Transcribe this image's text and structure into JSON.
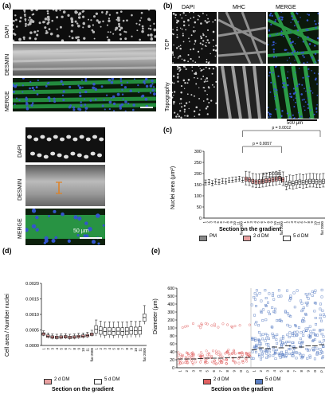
{
  "panel_a": {
    "letter": "(a)",
    "labels": [
      "DAPI",
      "DESMIN",
      "MERGE"
    ],
    "zoom_labels": [
      "DAPI",
      "DESMIN",
      "MERGE"
    ],
    "scale_text": "50 μm"
  },
  "panel_b": {
    "letter": "(b)",
    "columns": [
      "DAPI",
      "MHC",
      "MERGE"
    ],
    "rows": [
      "TCP",
      "Topography"
    ],
    "scale_text": "500 μm"
  },
  "panel_c": {
    "letter": "(c)",
    "ylabel": "Nuclei area (μm²)",
    "xlabel": "Section on the gradient",
    "legend": [
      "PM",
      "2 d DM",
      "5 d DM"
    ],
    "pvalues": [
      "p = 0.0012",
      "p = 0.0057",
      "p = 0.0181"
    ]
  },
  "panel_d": {
    "letter": "(d)",
    "ylabel": "Cell area / Number nuclei",
    "xlabel": "Section on the gradient",
    "legend": [
      "2 d DM",
      "5 d DM"
    ]
  },
  "panel_e": {
    "letter": "(e)",
    "ylabel": "Diameter (μm)",
    "xlabel": "Section on the gradient",
    "legend": [
      "2 d DM",
      "5 d DM"
    ]
  },
  "colors": {
    "pm": "#888888",
    "dm2": "#e8a0a0",
    "dm5": "#ffffff",
    "dm2_e": "#e06060",
    "dm5_e": "#5b7fc4"
  },
  "chart_data": [
    {
      "type": "box",
      "panel": "c",
      "categories": [
        "1",
        "2",
        "3",
        "4",
        "5",
        "6",
        "7",
        "8",
        "9",
        "10",
        "11",
        "flat 2000"
      ],
      "series": [
        {
          "name": "PM",
          "medians": [
            158,
            160,
            155,
            162,
            160,
            165,
            163,
            168,
            170,
            172,
            175,
            170
          ]
        },
        {
          "name": "2 d DM",
          "medians": [
            175,
            172,
            165,
            162,
            163,
            165,
            168,
            170,
            172,
            175,
            178,
            172
          ]
        },
        {
          "name": "5 d DM",
          "medians": [
            152,
            158,
            155,
            160,
            162,
            160,
            162,
            165,
            165,
            163,
            162,
            165
          ]
        }
      ],
      "ylim": [
        0,
        300
      ],
      "yticks": [
        0,
        50,
        100,
        150,
        200,
        250,
        300
      ],
      "ylabel": "Nuclei area (μm²)",
      "xlabel": "Section on the gradient"
    },
    {
      "type": "box",
      "panel": "d",
      "categories": [
        "1",
        "2",
        "3",
        "4",
        "5",
        "6",
        "7",
        "8",
        "9",
        "10",
        "11",
        "flat 2000"
      ],
      "series": [
        {
          "name": "2 d DM",
          "medians": [
            0.00037,
            0.0003,
            0.00027,
            0.00026,
            0.00027,
            0.00028,
            0.00026,
            0.00027,
            0.00029,
            0.0003,
            0.00032,
            0.00036
          ]
        },
        {
          "name": "5 d DM",
          "medians": [
            0.00052,
            0.00048,
            0.00045,
            0.00046,
            0.00045,
            0.00046,
            0.00045,
            0.00046,
            0.00048,
            0.00047,
            0.00048,
            0.0009
          ]
        }
      ],
      "ylim": [
        0,
        0.002
      ],
      "yticks": [
        0.0,
        0.0005,
        0.001,
        0.0015,
        0.002
      ],
      "ylabel": "Cell area / Number nuclei",
      "xlabel": "Section on the gradient"
    },
    {
      "type": "scatter",
      "panel": "e",
      "categories": [
        "1",
        "2",
        "3",
        "4",
        "5",
        "6",
        "7",
        "8",
        "9",
        "10",
        "TCP"
      ],
      "series": [
        {
          "name": "2 d DM",
          "medians": [
            22,
            22,
            22,
            23,
            24,
            24,
            24,
            25,
            25,
            26,
            26
          ]
        },
        {
          "name": "5 d DM",
          "medians": [
            45,
            50,
            48,
            52,
            50,
            55,
            50,
            52,
            55,
            55,
            58
          ]
        }
      ],
      "ylim": [
        0,
        600
      ],
      "yticks": [
        0,
        20,
        40,
        60,
        80,
        100,
        200,
        300,
        400,
        500,
        600
      ],
      "ylabel": "Diameter (μm)",
      "xlabel": "Section on the gradient"
    }
  ]
}
